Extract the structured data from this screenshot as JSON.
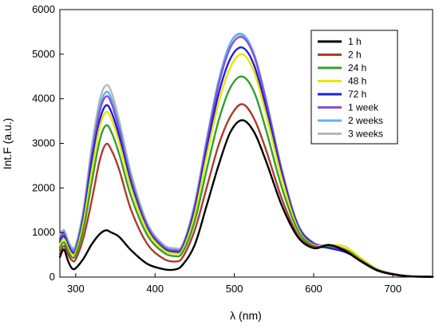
{
  "chart_data": {
    "type": "line",
    "xlabel": "λ (nm)",
    "ylabel": "Int.F (a.u.)",
    "xlim": [
      280,
      750
    ],
    "ylim": [
      0,
      6000
    ],
    "x_ticks": [
      300,
      400,
      500,
      600,
      700
    ],
    "y_ticks": [
      0,
      1000,
      2000,
      3000,
      4000,
      5000,
      6000
    ],
    "legend_position": "top-right",
    "grid": false,
    "x": [
      280,
      285,
      290,
      295,
      300,
      310,
      320,
      330,
      338,
      345,
      355,
      370,
      390,
      410,
      425,
      435,
      450,
      465,
      480,
      495,
      510,
      525,
      540,
      560,
      580,
      600,
      620,
      640,
      660,
      680,
      700,
      720,
      750
    ],
    "series": [
      {
        "name": "1 h",
        "color": "#000000",
        "values": [
          450,
          620,
          380,
          200,
          200,
          420,
          730,
          960,
          1050,
          1000,
          900,
          600,
          300,
          180,
          170,
          280,
          720,
          1600,
          2500,
          3250,
          3520,
          3250,
          2600,
          1600,
          900,
          650,
          720,
          580,
          350,
          150,
          60,
          20,
          5
        ]
      },
      {
        "name": "2 h",
        "color": "#b03a2e",
        "values": [
          520,
          700,
          520,
          380,
          400,
          900,
          1700,
          2600,
          2980,
          2850,
          2400,
          1500,
          750,
          420,
          350,
          450,
          1050,
          2000,
          2950,
          3600,
          3880,
          3550,
          2850,
          1750,
          950,
          680,
          720,
          600,
          360,
          160,
          70,
          20,
          5
        ]
      },
      {
        "name": "24 h",
        "color": "#33a02c",
        "values": [
          650,
          780,
          600,
          450,
          500,
          1100,
          2100,
          3050,
          3400,
          3250,
          2750,
          1800,
          950,
          560,
          470,
          560,
          1250,
          2400,
          3500,
          4250,
          4500,
          4150,
          3300,
          2000,
          1050,
          700,
          700,
          620,
          380,
          170,
          70,
          20,
          5
        ]
      },
      {
        "name": "48 h",
        "color": "#e6e600",
        "values": [
          720,
          860,
          660,
          520,
          560,
          1250,
          2350,
          3350,
          3700,
          3550,
          3000,
          1980,
          1050,
          620,
          530,
          620,
          1400,
          2700,
          3900,
          4700,
          5000,
          4600,
          3650,
          2200,
          1100,
          720,
          720,
          680,
          420,
          180,
          70,
          20,
          5
        ]
      },
      {
        "name": "72 h",
        "color": "#1f1fd6",
        "values": [
          800,
          920,
          720,
          560,
          600,
          1350,
          2550,
          3500,
          3850,
          3700,
          3150,
          2080,
          1100,
          650,
          560,
          660,
          1500,
          2850,
          4100,
          4900,
          5150,
          4750,
          3800,
          2300,
          1150,
          740,
          650,
          560,
          380,
          170,
          70,
          20,
          5
        ]
      },
      {
        "name": "1 week",
        "color": "#8a4fd8",
        "values": [
          860,
          980,
          760,
          600,
          640,
          1420,
          2700,
          3700,
          4050,
          3900,
          3300,
          2180,
          1150,
          690,
          600,
          700,
          1580,
          3000,
          4300,
          5150,
          5380,
          4950,
          3950,
          2380,
          1180,
          760,
          680,
          580,
          390,
          170,
          70,
          20,
          5
        ]
      },
      {
        "name": "2 weeks",
        "color": "#5fb3f0",
        "values": [
          900,
          1020,
          800,
          640,
          680,
          1480,
          2780,
          3800,
          4150,
          4000,
          3380,
          2240,
          1180,
          710,
          620,
          720,
          1620,
          3060,
          4380,
          5250,
          5450,
          5000,
          3990,
          2400,
          1190,
          770,
          690,
          590,
          390,
          170,
          70,
          20,
          5
        ]
      },
      {
        "name": "3 weeks",
        "color": "#b8b8b8",
        "values": [
          950,
          1060,
          840,
          680,
          720,
          1560,
          2900,
          3950,
          4300,
          4150,
          3500,
          2320,
          1220,
          740,
          650,
          740,
          1650,
          3080,
          4400,
          5250,
          5420,
          4980,
          3980,
          2400,
          1190,
          770,
          690,
          590,
          390,
          170,
          70,
          20,
          5
        ]
      }
    ]
  }
}
